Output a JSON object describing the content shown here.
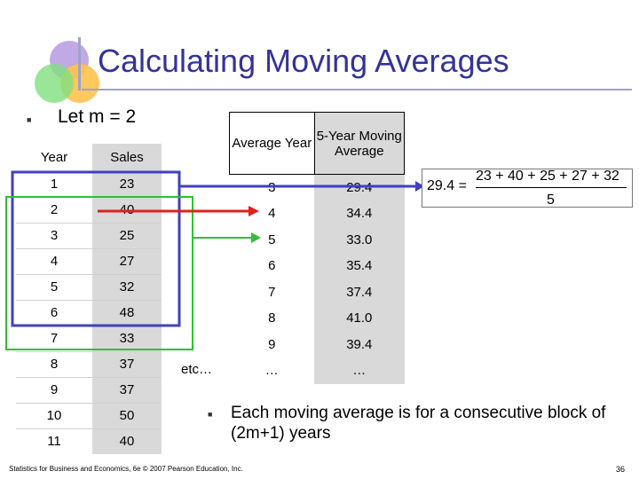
{
  "title": "Calculating Moving Averages",
  "bullet_text": "Let m = 2",
  "left_table": {
    "headers": [
      "Year",
      "Sales"
    ],
    "rows": [
      [
        "1",
        "23"
      ],
      [
        "2",
        "40"
      ],
      [
        "3",
        "25"
      ],
      [
        "4",
        "27"
      ],
      [
        "5",
        "32"
      ],
      [
        "6",
        "48"
      ],
      [
        "7",
        "33"
      ],
      [
        "8",
        "37"
      ],
      [
        "9",
        "37"
      ],
      [
        "10",
        "50"
      ],
      [
        "11",
        "40"
      ]
    ]
  },
  "right_table": {
    "headers": [
      "Average Year",
      "5-Year Moving Average"
    ],
    "rows": [
      [
        "3",
        "29.4"
      ],
      [
        "4",
        "34.4"
      ],
      [
        "5",
        "33.0"
      ],
      [
        "6",
        "35.4"
      ],
      [
        "7",
        "37.4"
      ],
      [
        "8",
        "41.0"
      ],
      [
        "9",
        "39.4"
      ],
      [
        "…",
        "…"
      ]
    ]
  },
  "etc": "etc…",
  "formula": {
    "lhs": "29.4",
    "numerator": "23 + 40 + 25 + 27 + 32",
    "denominator": "5"
  },
  "note": "Each moving average is for a consecutive block of  (2m+1)  years",
  "footer": "Statistics for Business and Economics, 6e © 2007 Pearson Education, Inc.",
  "page_number": "36",
  "colors": {
    "title": "#333399",
    "blue_box": "#4040c0",
    "red_arrow": "#e02020",
    "green_box": "#30c030"
  }
}
